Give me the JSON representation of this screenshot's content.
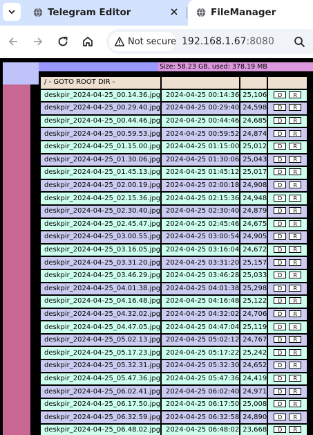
{
  "tabs": [
    {
      "title": "Telegram Editor",
      "icon": "globe-icon",
      "active": false
    },
    {
      "title": "FileManager",
      "icon": "globe-icon",
      "active": true
    }
  ],
  "toolbar": {
    "security_label": "Not secure",
    "url_host": "192.168.1.67",
    "url_port": ":8080"
  },
  "page": {
    "info": "Size: 58.23 GB, used: 378.19 MB",
    "root_label": "/ - GOTO ROOT DIR -",
    "download_label": "D",
    "rename_label": "R",
    "files": [
      {
        "name": "deskpir_2024-04-25_00.14.36.jpg",
        "date": "2024-04-25 00:14:36",
        "size": "25,106"
      },
      {
        "name": "deskpir_2024-04-25_00.29.40.jpg",
        "date": "2024-04-25 00:29:40",
        "size": "24,598"
      },
      {
        "name": "deskpir_2024-04-25_00.44.46.jpg",
        "date": "2024-04-25 00:44:46",
        "size": "24,685"
      },
      {
        "name": "deskpir_2024-04-25_00.59.53.jpg",
        "date": "2024-04-25 00:59:52",
        "size": "24,874"
      },
      {
        "name": "deskpir_2024-04-25_01.15.00.jpg",
        "date": "2024-04-25 01:15:00",
        "size": "25,012"
      },
      {
        "name": "deskpir_2024-04-25_01.30.06.jpg",
        "date": "2024-04-25 01:30:06",
        "size": "25,043"
      },
      {
        "name": "deskpir_2024-04-25_01.45.13.jpg",
        "date": "2024-04-25 01:45:12",
        "size": "25,017"
      },
      {
        "name": "deskpir_2024-04-25_02.00.19.jpg",
        "date": "2024-04-25 02:00:18",
        "size": "24,908"
      },
      {
        "name": "deskpir_2024-04-25_02.15.36.jpg",
        "date": "2024-04-25 02:15:36",
        "size": "24,948"
      },
      {
        "name": "deskpir_2024-04-25_02.30.40.jpg",
        "date": "2024-04-25 02:30:40",
        "size": "24,879"
      },
      {
        "name": "deskpir_2024-04-25_02.45.47.jpg",
        "date": "2024-04-25 02:45:46",
        "size": "24,675"
      },
      {
        "name": "deskpir_2024-04-25_03.00.55.jpg",
        "date": "2024-04-25 03:00:54",
        "size": "24,905"
      },
      {
        "name": "deskpir_2024-04-25_03.16.05.jpg",
        "date": "2024-04-25 03:16:04",
        "size": "24,672"
      },
      {
        "name": "deskpir_2024-04-25_03.31.20.jpg",
        "date": "2024-04-25 03:31:20",
        "size": "25,157"
      },
      {
        "name": "deskpir_2024-04-25_03.46.29.jpg",
        "date": "2024-04-25 03:46:28",
        "size": "25,033"
      },
      {
        "name": "deskpir_2024-04-25_04.01.38.jpg",
        "date": "2024-04-25 04:01:38",
        "size": "25,298"
      },
      {
        "name": "deskpir_2024-04-25_04.16.48.jpg",
        "date": "2024-04-25 04:16:48",
        "size": "25,122"
      },
      {
        "name": "deskpir_2024-04-25_04.32.02.jpg",
        "date": "2024-04-25 04:32:02",
        "size": "24,706"
      },
      {
        "name": "deskpir_2024-04-25_04.47.05.jpg",
        "date": "2024-04-25 04:47:04",
        "size": "25,119"
      },
      {
        "name": "deskpir_2024-04-25_05.02.13.jpg",
        "date": "2024-04-25 05:02:12",
        "size": "24,767"
      },
      {
        "name": "deskpir_2024-04-25_05.17.23.jpg",
        "date": "2024-04-25 05:17:22",
        "size": "25,242"
      },
      {
        "name": "deskpir_2024-04-25_05.32.31.jpg",
        "date": "2024-04-25 05:32:30",
        "size": "24,652"
      },
      {
        "name": "deskpir_2024-04-25_05.47.36.jpg",
        "date": "2024-04-25 05:47:36",
        "size": "24,419"
      },
      {
        "name": "deskpir_2024-04-25_06.02.41.jpg",
        "date": "2024-04-25 06:02:40",
        "size": "24,971"
      },
      {
        "name": "deskpir_2024-04-25_06.17.50.jpg",
        "date": "2024-04-25 06:17:50",
        "size": "25,008"
      },
      {
        "name": "deskpir_2024-04-25_06.32.59.jpg",
        "date": "2024-04-25 06:32:58",
        "size": "24,890"
      },
      {
        "name": "deskpir_2024-04-25_06.48.02.jpg",
        "date": "2024-04-25 06:48:02",
        "size": "23,668"
      }
    ]
  }
}
